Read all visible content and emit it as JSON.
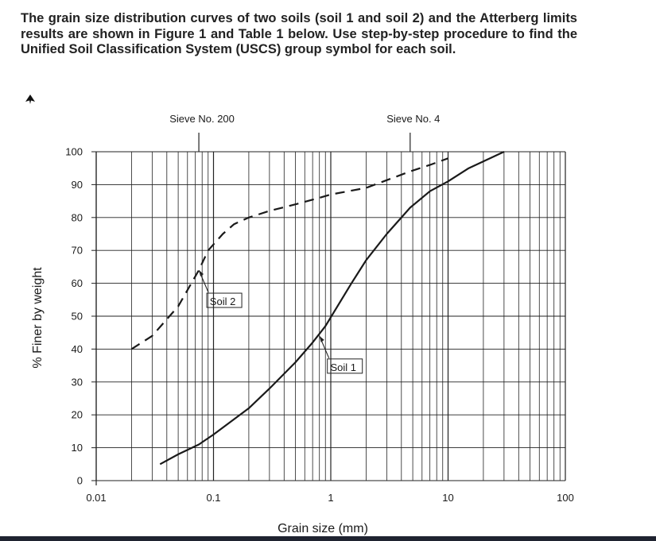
{
  "question": "The grain size distribution curves of two soils (soil 1 and soil 2) and the Atterberg limits results are shown in Figure 1 and Table 1 below. Use step-by-step procedure to find the Unified Soil Classification System (USCS) group symbol for each soil.",
  "chart_data": {
    "type": "line",
    "xlabel": "Grain size (mm)",
    "ylabel": "% Finer by weight",
    "x_scale": "log",
    "xlim": [
      0.01,
      100
    ],
    "ylim": [
      0,
      100
    ],
    "x_ticks": [
      {
        "value": 0.01,
        "label": "0.01"
      },
      {
        "value": 0.1,
        "label": "0.1"
      },
      {
        "value": 1,
        "label": "1"
      },
      {
        "value": 10,
        "label": "10"
      },
      {
        "value": 100,
        "label": "100"
      }
    ],
    "y_ticks": [
      0,
      10,
      20,
      30,
      40,
      50,
      60,
      70,
      80,
      90,
      100
    ],
    "grid": true,
    "series": [
      {
        "name": "Soil 1",
        "style": "solid",
        "color": "#1a1a1a",
        "points": [
          [
            0.035,
            5
          ],
          [
            0.05,
            8
          ],
          [
            0.075,
            11
          ],
          [
            0.1,
            14
          ],
          [
            0.2,
            22
          ],
          [
            0.3,
            28
          ],
          [
            0.5,
            36
          ],
          [
            0.7,
            42
          ],
          [
            0.9,
            47
          ],
          [
            1.5,
            60
          ],
          [
            2,
            67
          ],
          [
            3,
            75
          ],
          [
            4.75,
            83
          ],
          [
            7,
            88
          ],
          [
            10,
            91
          ],
          [
            15,
            95
          ],
          [
            30,
            100
          ]
        ]
      },
      {
        "name": "Soil 2",
        "style": "dashed",
        "color": "#1a1a1a",
        "points": [
          [
            0.02,
            40
          ],
          [
            0.03,
            44
          ],
          [
            0.05,
            53
          ],
          [
            0.075,
            64
          ],
          [
            0.09,
            70
          ],
          [
            0.12,
            75
          ],
          [
            0.15,
            78
          ],
          [
            0.2,
            80
          ],
          [
            0.3,
            82
          ],
          [
            0.5,
            84
          ],
          [
            0.8,
            86
          ],
          [
            1,
            87
          ],
          [
            2,
            89
          ],
          [
            4.75,
            94
          ],
          [
            7,
            96
          ],
          [
            10,
            98
          ]
        ]
      }
    ],
    "annotations": [
      {
        "text": "Sieve No. 200",
        "x": 0.075
      },
      {
        "text": "Sieve No. 4",
        "x": 4.75
      },
      {
        "text": "Soil 2",
        "x": 0.075,
        "y": 64
      },
      {
        "text": "Soil 1",
        "x": 0.8,
        "y": 44
      }
    ]
  }
}
